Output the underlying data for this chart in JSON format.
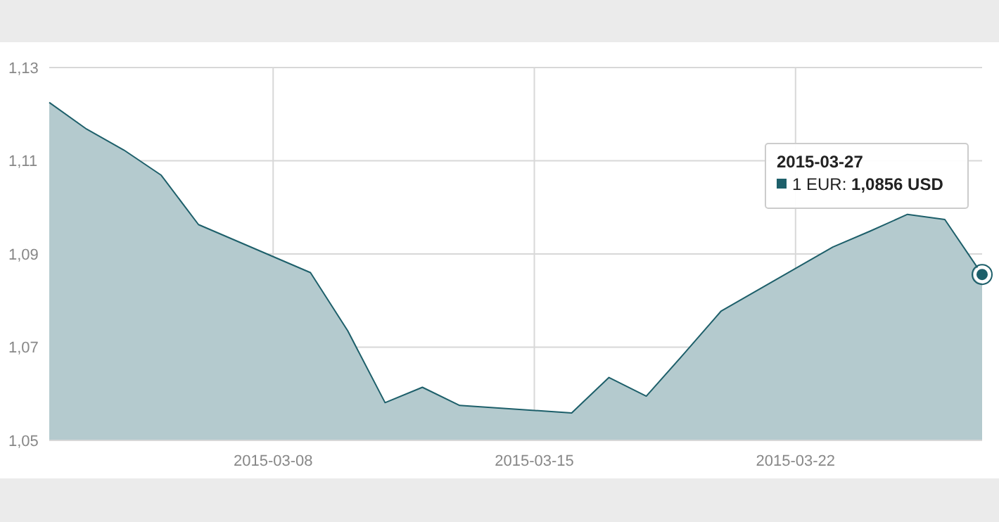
{
  "chart_data": {
    "type": "area",
    "x": [
      "2015-03-02",
      "2015-03-03",
      "2015-03-04",
      "2015-03-05",
      "2015-03-06",
      "2015-03-09",
      "2015-03-10",
      "2015-03-11",
      "2015-03-12",
      "2015-03-13",
      "2015-03-16",
      "2015-03-17",
      "2015-03-18",
      "2015-03-19",
      "2015-03-20",
      "2015-03-23",
      "2015-03-24",
      "2015-03-25",
      "2015-03-26",
      "2015-03-27"
    ],
    "series": [
      {
        "color": "#1d5f6a",
        "values": [
          1.1225,
          1.1168,
          1.1123,
          1.1069,
          1.0963,
          1.086,
          1.0735,
          1.0581,
          1.0614,
          1.0575,
          1.0559,
          1.0635,
          1.0595,
          1.0685,
          1.0777,
          1.0915,
          1.0949,
          1.0985,
          1.0974,
          1.0856
        ]
      }
    ],
    "xlim": [
      "2015-03-02",
      "2015-03-27"
    ],
    "xticks": [
      "2015-03-08",
      "2015-03-15",
      "2015-03-22"
    ],
    "ylim": [
      1.05,
      1.13
    ],
    "yticks": [
      {
        "value": 1.05,
        "label": "1,05"
      },
      {
        "value": 1.07,
        "label": "1,07"
      },
      {
        "value": 1.09,
        "label": "1,09"
      },
      {
        "value": 1.11,
        "label": "1,11"
      },
      {
        "value": 1.13,
        "label": "1,13"
      }
    ],
    "grid": true,
    "marker": "none",
    "line_style": "solid",
    "annotations": [
      "2015-03-27",
      "1 EUR: 1,0856 USD"
    ]
  }
}
